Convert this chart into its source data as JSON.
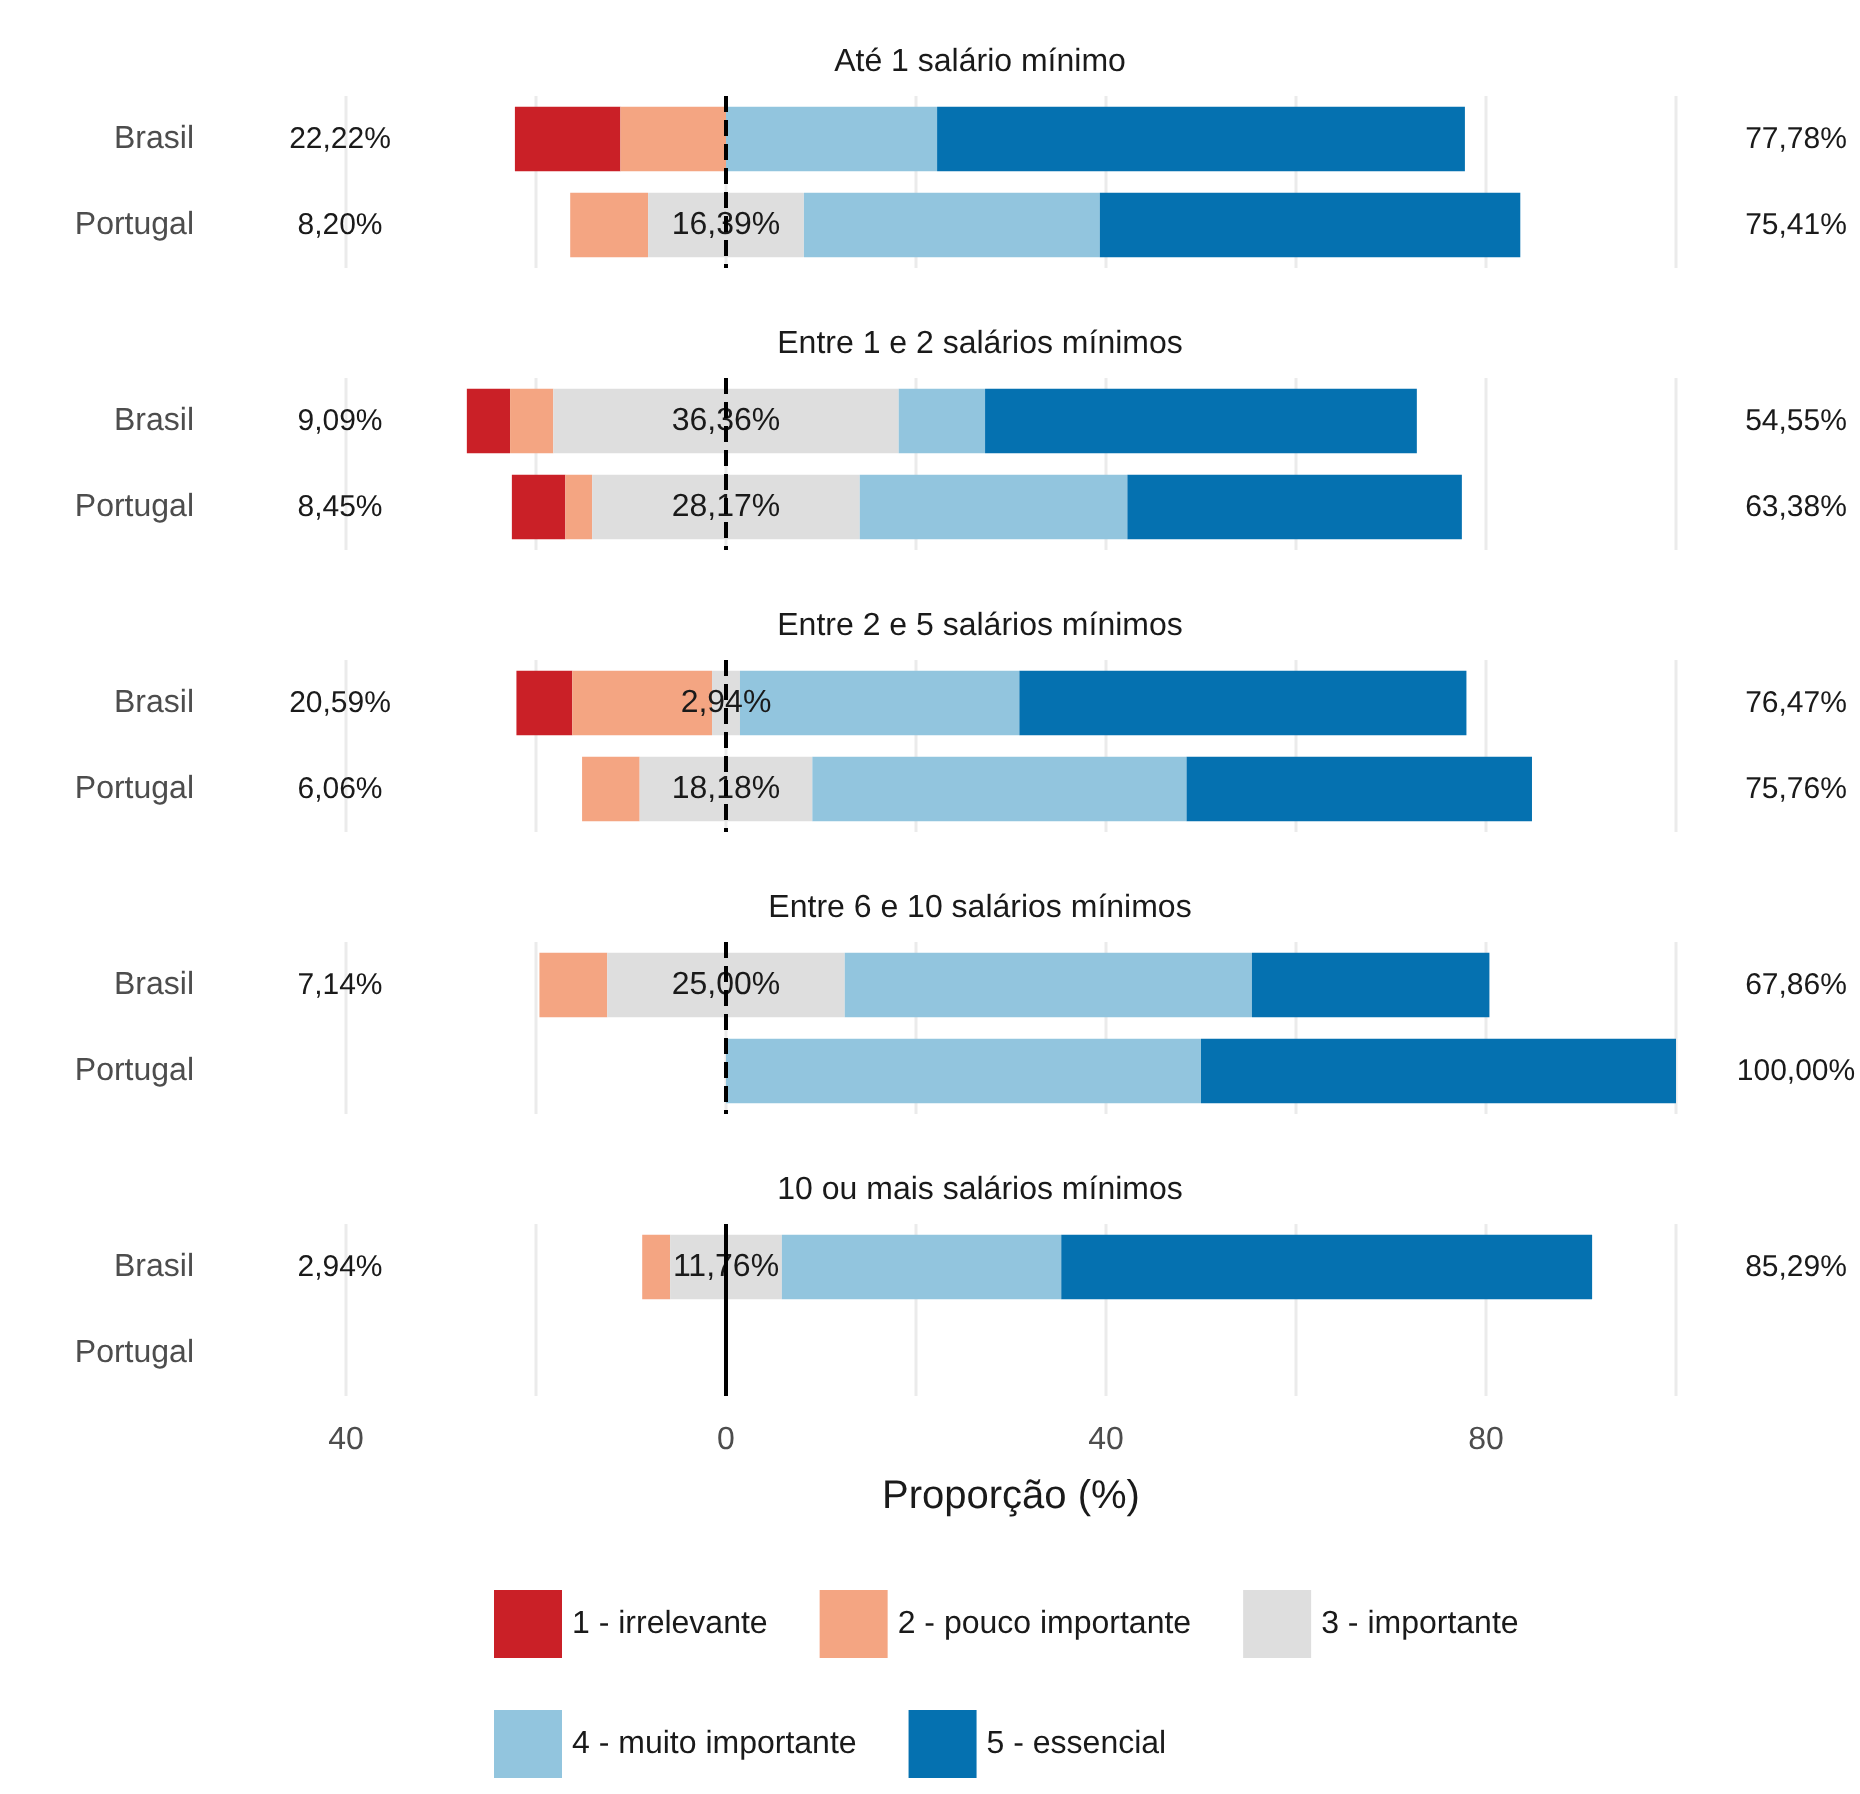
{
  "chart_data": [
    {
      "type": "bar",
      "orientation": "horizontal",
      "title": "Até 1 salário mínimo",
      "categories": [
        "Brasil",
        "Portugal"
      ],
      "series": [
        {
          "color": "#ca2027",
          "values": [
            11.11,
            null
          ],
          "base": [
            -22.22,
            null
          ]
        },
        {
          "color": "#f4a582",
          "values": [
            11.11,
            8.2
          ],
          "base": [
            -11.11,
            -16.4
          ]
        },
        {
          "color": "#dedede",
          "values": [
            null,
            16.39
          ],
          "base": [
            null,
            -8.2
          ],
          "value_labels": [
            null,
            "16,39%"
          ]
        },
        {
          "color": "#92c5de",
          "values": [
            22.22,
            31.15
          ],
          "base": [
            0,
            8.2
          ]
        },
        {
          "color": "#0571b0",
          "values": [
            55.56,
            44.26
          ],
          "base": [
            22.22,
            39.35
          ]
        }
      ],
      "annotations": [
        "22,22%",
        "77,78%",
        "8,20%",
        "75,41%"
      ],
      "xlim": [
        -40,
        100
      ],
      "xticks": [
        {
          "value": -40,
          "label": null
        },
        {
          "value": -20,
          "label": null
        },
        {
          "value": 0,
          "label": null
        },
        {
          "value": 20,
          "label": null
        },
        {
          "value": 40,
          "label": null
        },
        {
          "value": 60,
          "label": null
        },
        {
          "value": 80,
          "label": null
        },
        {
          "value": 100,
          "label": null
        }
      ],
      "ref_lines": [
        {
          "axis": "x",
          "value": 0,
          "color": "#000000",
          "line_style": "dashed"
        }
      ],
      "grid": "x",
      "tick_labels": "y",
      "legend": false
    },
    {
      "type": "bar",
      "orientation": "horizontal",
      "title": "Entre 1 e 2 salários mínimos",
      "categories": [
        "Brasil",
        "Portugal"
      ],
      "series": [
        {
          "color": "#ca2027",
          "values": [
            4.55,
            5.63
          ],
          "base": [
            -27.28,
            -22.54
          ]
        },
        {
          "color": "#f4a582",
          "values": [
            4.55,
            2.82
          ],
          "base": [
            -22.73,
            -16.91
          ]
        },
        {
          "color": "#dedede",
          "values": [
            36.36,
            28.17
          ],
          "base": [
            -18.18,
            -14.09
          ],
          "value_labels": [
            "36,36%",
            "28,17%"
          ]
        },
        {
          "color": "#92c5de",
          "values": [
            9.09,
            28.17
          ],
          "base": [
            18.18,
            14.08
          ]
        },
        {
          "color": "#0571b0",
          "values": [
            45.45,
            35.21
          ],
          "base": [
            27.27,
            42.25
          ]
        }
      ],
      "annotations": [
        "9,09%",
        "54,55%",
        "8,45%",
        "63,38%"
      ],
      "xlim": [
        -40,
        100
      ],
      "xticks": [
        {
          "value": -40,
          "label": null
        },
        {
          "value": -20,
          "label": null
        },
        {
          "value": 0,
          "label": null
        },
        {
          "value": 20,
          "label": null
        },
        {
          "value": 40,
          "label": null
        },
        {
          "value": 60,
          "label": null
        },
        {
          "value": 80,
          "label": null
        },
        {
          "value": 100,
          "label": null
        }
      ],
      "ref_lines": [
        {
          "axis": "x",
          "value": 0,
          "color": "#000000",
          "line_style": "dashed"
        }
      ],
      "grid": "x",
      "tick_labels": "y",
      "legend": false
    },
    {
      "type": "bar",
      "orientation": "horizontal",
      "title": "Entre 2 e 5 salários mínimos",
      "categories": [
        "Brasil",
        "Portugal"
      ],
      "series": [
        {
          "color": "#ca2027",
          "values": [
            5.88,
            null
          ],
          "base": [
            -22.06,
            null
          ]
        },
        {
          "color": "#f4a582",
          "values": [
            14.71,
            6.06
          ],
          "base": [
            -16.18,
            -15.15
          ]
        },
        {
          "color": "#dedede",
          "values": [
            2.94,
            18.18
          ],
          "base": [
            -1.47,
            -9.09
          ],
          "value_labels": [
            "2,94%",
            "18,18%"
          ]
        },
        {
          "color": "#92c5de",
          "values": [
            29.41,
            39.39
          ],
          "base": [
            1.47,
            9.09
          ]
        },
        {
          "color": "#0571b0",
          "values": [
            47.06,
            36.36
          ],
          "base": [
            30.88,
            48.48
          ]
        }
      ],
      "annotations": [
        "20,59%",
        "76,47%",
        "6,06%",
        "75,76%"
      ],
      "xlim": [
        -40,
        100
      ],
      "xticks": [
        {
          "value": -40,
          "label": null
        },
        {
          "value": -20,
          "label": null
        },
        {
          "value": 0,
          "label": null
        },
        {
          "value": 20,
          "label": null
        },
        {
          "value": 40,
          "label": null
        },
        {
          "value": 60,
          "label": null
        },
        {
          "value": 80,
          "label": null
        },
        {
          "value": 100,
          "label": null
        }
      ],
      "ref_lines": [
        {
          "axis": "x",
          "value": 0,
          "color": "#000000",
          "line_style": "dashed"
        }
      ],
      "grid": "x",
      "tick_labels": "y",
      "legend": false
    },
    {
      "type": "bar",
      "orientation": "horizontal",
      "title": "Entre 6 e 10 salários mínimos",
      "categories": [
        "Brasil",
        "Portugal"
      ],
      "series": [
        {
          "color": "#ca2027",
          "values": [
            null,
            null
          ],
          "base": [
            null,
            null
          ]
        },
        {
          "color": "#f4a582",
          "values": [
            7.14,
            null
          ],
          "base": [
            -19.64,
            null
          ]
        },
        {
          "color": "#dedede",
          "values": [
            25,
            null
          ],
          "base": [
            -12.5,
            null
          ],
          "value_labels": [
            "25,00%",
            null
          ]
        },
        {
          "color": "#92c5de",
          "values": [
            42.86,
            50
          ],
          "base": [
            12.5,
            0
          ]
        },
        {
          "color": "#0571b0",
          "values": [
            25,
            50
          ],
          "base": [
            55.36,
            50
          ]
        }
      ],
      "annotations": [
        "7,14%",
        "67,86%",
        "100,00%"
      ],
      "xlim": [
        -40,
        100
      ],
      "xticks": [
        {
          "value": -40,
          "label": null
        },
        {
          "value": -20,
          "label": null
        },
        {
          "value": 0,
          "label": null
        },
        {
          "value": 20,
          "label": null
        },
        {
          "value": 40,
          "label": null
        },
        {
          "value": 60,
          "label": null
        },
        {
          "value": 80,
          "label": null
        },
        {
          "value": 100,
          "label": null
        }
      ],
      "ref_lines": [
        {
          "axis": "x",
          "value": 0,
          "color": "#000000",
          "line_style": "dashed"
        }
      ],
      "grid": "x",
      "tick_labels": "y",
      "legend": false
    },
    {
      "type": "bar",
      "orientation": "horizontal",
      "title": "10 ou mais salários mínimos",
      "categories": [
        "Brasil",
        "Portugal"
      ],
      "series": [
        {
          "name": "1 - irrelevante",
          "color": "#ca2027",
          "values": [
            null,
            null
          ],
          "base": [
            null,
            null
          ]
        },
        {
          "name": "2 - pouco importante",
          "color": "#f4a582",
          "values": [
            2.94,
            null
          ],
          "base": [
            -8.82,
            null
          ]
        },
        {
          "name": "3 - importante",
          "color": "#dedede",
          "values": [
            11.76,
            null
          ],
          "base": [
            -5.88,
            null
          ],
          "value_labels": [
            "11,76%",
            null
          ]
        },
        {
          "name": "4 - muito importante",
          "color": "#92c5de",
          "values": [
            29.41,
            null
          ],
          "base": [
            5.88,
            null
          ]
        },
        {
          "name": "5 - essencial",
          "color": "#0571b0",
          "values": [
            55.88,
            null
          ],
          "base": [
            35.29,
            null
          ]
        }
      ],
      "annotations": [
        "2,94%",
        "85,29%"
      ],
      "xlabel": "Proporção (%)",
      "xlim": [
        -40,
        100
      ],
      "xticks": [
        {
          "value": -40,
          "label": "40"
        },
        {
          "value": -20,
          "label": null
        },
        0,
        {
          "value": 20,
          "label": null
        },
        40,
        {
          "value": 60,
          "label": null
        },
        80,
        {
          "value": 100,
          "label": null
        }
      ],
      "ref_lines": [
        {
          "axis": "x",
          "value": 0,
          "color": "#000000",
          "line_style": "solid"
        }
      ],
      "grid": "x",
      "legend": "bottom"
    }
  ]
}
